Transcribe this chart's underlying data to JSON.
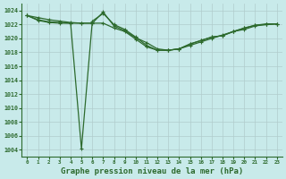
{
  "bg_color": "#c8eaea",
  "grid_color": "#b0cccc",
  "line_color": "#2d6a2d",
  "marker_color": "#2d6a2d",
  "xlabel": "Graphe pression niveau de la mer (hPa)",
  "xlabel_fontsize": 6.5,
  "ytick_min": 1004,
  "ytick_max": 1024,
  "ytick_step": 2,
  "xlim": [
    -0.5,
    23.5
  ],
  "ylim": [
    1003.0,
    1025.0
  ],
  "figsize": [
    3.2,
    2.0
  ],
  "dpi": 100,
  "series": [
    [
      1023.3,
      1023.0,
      1022.7,
      1022.5,
      1022.3,
      1022.2,
      1022.2,
      1023.8,
      1021.8,
      1021.1,
      1020.1,
      1019.4,
      1018.5,
      1018.3,
      1018.5,
      1019.0,
      1019.5,
      1020.0,
      1020.5,
      1021.0,
      1021.3,
      1021.8,
      1022.0,
      1022.1
    ],
    [
      1023.3,
      1022.7,
      1022.4,
      1022.3,
      1022.2,
      1004.1,
      1022.5,
      1023.6,
      1022.0,
      1021.3,
      1020.2,
      1019.0,
      1018.3,
      1018.3,
      1018.5,
      1019.2,
      1019.7,
      1020.2,
      1020.4,
      1021.0,
      1021.5,
      1021.9,
      1022.0,
      1022.1
    ],
    [
      1023.3,
      1022.6,
      1022.3,
      1022.2,
      1022.2,
      1022.2,
      1022.2,
      1022.2,
      1021.5,
      1021.0,
      1019.9,
      1018.8,
      1018.3,
      1018.3,
      1018.5,
      1019.2,
      1019.7,
      1020.2,
      1020.4,
      1021.0,
      1021.5,
      1021.9,
      1022.1,
      1022.1
    ]
  ],
  "xtick_labels": [
    "0",
    "1",
    "2",
    "3",
    "4",
    "5",
    "6",
    "7",
    "8",
    "9",
    "10",
    "11",
    "12",
    "13",
    "14",
    "15",
    "16",
    "17",
    "18",
    "19",
    "20",
    "21",
    "22",
    "23"
  ]
}
